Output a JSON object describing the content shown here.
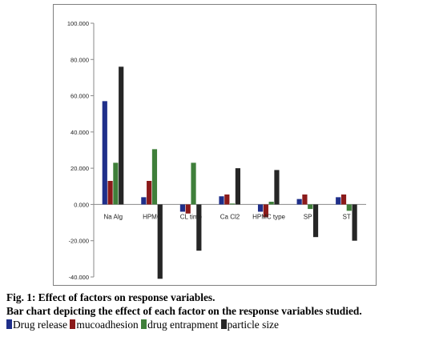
{
  "chart_data": {
    "type": "bar",
    "categories": [
      "Na Alg",
      "HPMC",
      "CL time",
      "Ca Cl2",
      "HPMC type",
      "SP",
      "ST"
    ],
    "series": [
      {
        "name": "Drug release",
        "color": "#1f2f8a",
        "values": [
          57.0,
          4.0,
          -4.0,
          4.5,
          -4.0,
          3.0,
          4.0
        ]
      },
      {
        "name": "mucoadhesion",
        "color": "#8b1a1a",
        "values": [
          13.0,
          13.0,
          -5.0,
          5.5,
          -7.0,
          5.5,
          5.5
        ]
      },
      {
        "name": "drug entrapment",
        "color": "#3f7f3a",
        "values": [
          23.0,
          30.5,
          23.0,
          0.5,
          1.5,
          -2.5,
          -3.5
        ]
      },
      {
        "name": "particle size",
        "color": "#262626",
        "values": [
          76.0,
          -41.0,
          -25.5,
          20.0,
          19.0,
          -18.0,
          -20.0
        ]
      }
    ],
    "yticks": [
      "100.000",
      "80.000",
      "60.000",
      "40.000",
      "20.000",
      "0.000",
      "-20.000",
      "-40.000"
    ],
    "ylim": [
      -40,
      100
    ],
    "grid": false,
    "legend": "caption"
  },
  "caption": {
    "title": "Fig. 1: Effect of factors on response variables.",
    "description": "Bar chart depicting the effect of each factor on the response variables studied."
  }
}
